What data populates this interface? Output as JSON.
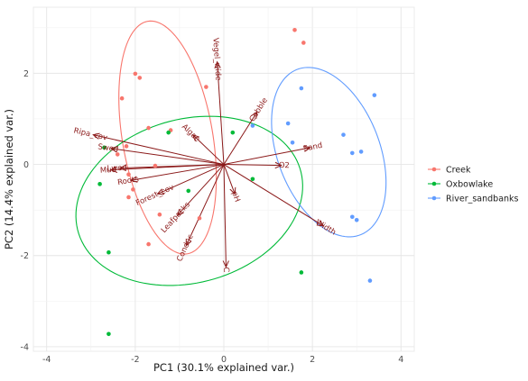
{
  "chart_data": {
    "type": "scatter",
    "title": "",
    "xlabel": "PC1 (30.1% explained var.)",
    "ylabel": "PC2 (14.4% explained var.)",
    "xlim": [
      -4.3,
      4.3
    ],
    "ylim": [
      -4.1,
      3.45
    ],
    "x_ticks": [
      -4,
      -2,
      0,
      2,
      4
    ],
    "y_ticks": [
      -4,
      -2,
      0,
      2
    ],
    "x_tick_labels": [
      "-4",
      "-2",
      "0",
      "2",
      "4"
    ],
    "y_tick_labels": [
      "-4",
      "-2",
      "0",
      "2"
    ],
    "grid": true,
    "legend_position": "right",
    "series": [
      {
        "name": "Creek",
        "color": "#F8766D",
        "points": [
          {
            "x": 1.6,
            "y": 2.95
          },
          {
            "x": 1.8,
            "y": 2.67
          },
          {
            "x": -2.0,
            "y": 1.99
          },
          {
            "x": -1.9,
            "y": 1.9
          },
          {
            "x": -0.4,
            "y": 1.7
          },
          {
            "x": -2.3,
            "y": 1.45
          },
          {
            "x": -1.2,
            "y": 0.75
          },
          {
            "x": -1.7,
            "y": 0.8
          },
          {
            "x": -2.2,
            "y": 0.4
          },
          {
            "x": -2.4,
            "y": 0.22
          },
          {
            "x": -1.55,
            "y": -0.03
          },
          {
            "x": -2.15,
            "y": -0.22
          },
          {
            "x": -2.05,
            "y": -0.55
          },
          {
            "x": -2.15,
            "y": -0.72
          },
          {
            "x": -1.45,
            "y": -1.1
          },
          {
            "x": -0.55,
            "y": -1.18
          },
          {
            "x": -1.7,
            "y": -1.75
          }
        ],
        "ellipse": {
          "cx": -1.27,
          "cy": 0.59,
          "rx": 1.02,
          "ry": 2.59,
          "angle": 10
        }
      },
      {
        "name": "Oxbowlake",
        "color": "#00BA38",
        "points": [
          {
            "x": -1.25,
            "y": 0.7
          },
          {
            "x": 0.2,
            "y": 0.7
          },
          {
            "x": -2.7,
            "y": 0.37
          },
          {
            "x": 0.65,
            "y": -0.32
          },
          {
            "x": -2.8,
            "y": -0.43
          },
          {
            "x": -0.8,
            "y": -0.58
          },
          {
            "x": -2.6,
            "y": -1.93
          },
          {
            "x": 1.75,
            "y": -2.37
          },
          {
            "x": -2.6,
            "y": -3.72
          }
        ],
        "ellipse": {
          "cx": -0.78,
          "cy": -0.8,
          "rx": 2.6,
          "ry": 1.8,
          "angle": 14
        }
      },
      {
        "name": "River_sandbanks",
        "color": "#619CFF",
        "points": [
          {
            "x": 1.75,
            "y": 1.67
          },
          {
            "x": 3.4,
            "y": 1.52
          },
          {
            "x": 1.45,
            "y": 0.9
          },
          {
            "x": 0.65,
            "y": 0.85
          },
          {
            "x": 2.7,
            "y": 0.65
          },
          {
            "x": 1.55,
            "y": 0.48
          },
          {
            "x": 3.1,
            "y": 0.28
          },
          {
            "x": 2.9,
            "y": 0.25
          },
          {
            "x": 2.9,
            "y": -1.15
          },
          {
            "x": 3.0,
            "y": -1.22
          },
          {
            "x": 3.3,
            "y": -2.55
          }
        ],
        "ellipse": {
          "cx": 2.37,
          "cy": 0.27,
          "rx": 1.15,
          "ry": 1.95,
          "angle": 22
        }
      }
    ],
    "loadings": [
      {
        "name": "Vegel_wide",
        "x": -0.15,
        "y": 2.25
      },
      {
        "name": "Cobble",
        "x": 0.75,
        "y": 1.15
      },
      {
        "name": "Sand",
        "x": 1.95,
        "y": 0.37
      },
      {
        "name": "O2",
        "x": 1.3,
        "y": -0.02
      },
      {
        "name": "Width",
        "x": 2.25,
        "y": -1.35
      },
      {
        "name": "pH",
        "x": 0.25,
        "y": -0.65
      },
      {
        "name": "C",
        "x": 0.05,
        "y": -2.25
      },
      {
        "name": "Conduc",
        "x": -0.85,
        "y": -1.78
      },
      {
        "name": "Leafpacks",
        "x": -1.05,
        "y": -1.12
      },
      {
        "name": "Forest_cov",
        "x": -1.5,
        "y": -0.65
      },
      {
        "name": "Roots",
        "x": -2.1,
        "y": -0.35
      },
      {
        "name": "Mud",
        "x": -2.55,
        "y": -0.12
      },
      {
        "name": "Lwod",
        "x": -2.35,
        "y": -0.08
      },
      {
        "name": "Swod",
        "x": -2.55,
        "y": 0.35
      },
      {
        "name": "Ripa_cov",
        "x": -2.95,
        "y": 0.65
      },
      {
        "name": "Algae",
        "x": -0.7,
        "y": 0.65
      }
    ],
    "loading_color": "#8B1A1A"
  }
}
